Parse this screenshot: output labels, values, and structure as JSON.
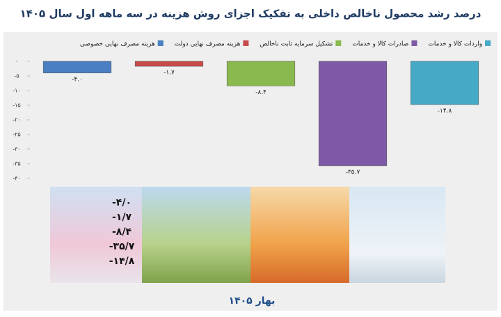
{
  "chart_data": {
    "type": "bar",
    "title": "درصد رشد محصول ناخالص داخلی به تفکیک اجزای روش هزینه در سه ماهه اول سال ۱۴۰۵",
    "categories": [
      "هزینه مصرف نهایی خصوصی",
      "هزینه مصرف نهایی دولت",
      "تشکیل سرمایه ثابت ناخالص",
      "صادرات کالا و خدمات",
      "واردات کالا و خدمات"
    ],
    "values": [
      -4.0,
      -1.7,
      -8.4,
      -35.7,
      -14.8
    ],
    "value_labels": [
      "-۴.۰",
      "-۱.۷",
      "-۸.۴",
      "-۳۵.۷",
      "-۱۴.۸"
    ],
    "colors": [
      "#4a7fc1",
      "#c94a4a",
      "#8ab94f",
      "#7e5aa6",
      "#46a9c6"
    ],
    "ylim": [
      0,
      -40
    ],
    "yticks": [
      {
        "value": 0,
        "label": "۰"
      },
      {
        "value": -5,
        "label": "-۵"
      },
      {
        "value": -10,
        "label": "-۱۰"
      },
      {
        "value": -15,
        "label": "-۱۵"
      },
      {
        "value": -20,
        "label": "-۲۰"
      },
      {
        "value": -25,
        "label": "-۲۵"
      },
      {
        "value": -30,
        "label": "-۳۰"
      },
      {
        "value": -35,
        "label": "-۳۵"
      },
      {
        "value": -40,
        "label": "-۴۰"
      }
    ],
    "grid": false,
    "legend": "top"
  },
  "panel": {
    "labels": [
      "-۴/۰",
      "-۱/۷",
      "-۸/۴",
      "-۳۵/۷",
      "-۱۴/۸"
    ],
    "caption": "بهار ۱۴۰۵"
  }
}
